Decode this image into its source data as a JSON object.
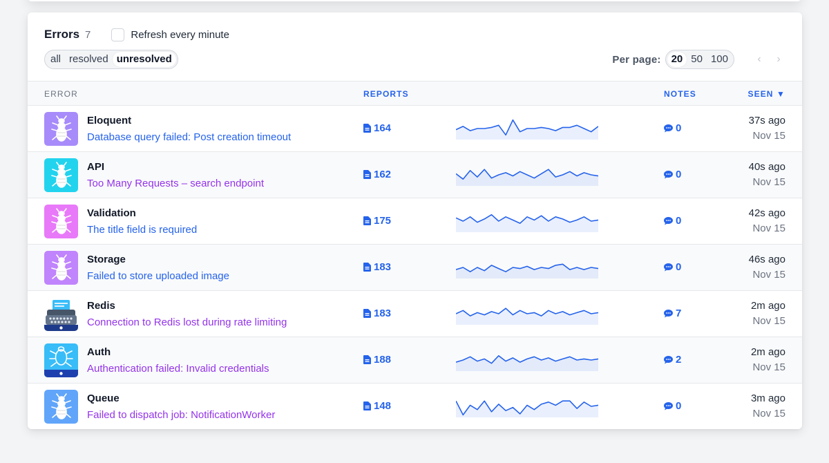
{
  "header": {
    "title": "Errors",
    "count": "7",
    "refresh_label": "Refresh every minute"
  },
  "filters": [
    "all",
    "resolved",
    "unresolved"
  ],
  "filters_active": "unresolved",
  "per_page": {
    "label": "Per page:",
    "options": [
      "20",
      "50",
      "100"
    ],
    "active": "20"
  },
  "columns": {
    "error": "Error",
    "reports": "Reports",
    "notes": "Notes",
    "seen": "Seen ▼"
  },
  "colors": {
    "link_blue": "#2563eb",
    "visited_purple": "#9333ea"
  },
  "rows": [
    {
      "name": "Eloquent",
      "message": "Database query failed: Post creation timeout",
      "message_color": "#2563eb",
      "reports": "164",
      "notes": "0",
      "ago": "37s ago",
      "date": "Nov 15",
      "icon": "bug-icon",
      "icon_bg": "#a78bfa",
      "spark": [
        8,
        11,
        7,
        9,
        9,
        10,
        12,
        3,
        17,
        6,
        9,
        9,
        10,
        9,
        7,
        10,
        10,
        12,
        9,
        6,
        11
      ]
    },
    {
      "name": "API",
      "message": "Too Many Requests – search endpoint",
      "message_color": "#9333ea",
      "reports": "162",
      "notes": "0",
      "ago": "40s ago",
      "date": "Nov 15",
      "icon": "bug-icon",
      "icon_bg": "#22d3ee",
      "spark": [
        10,
        5,
        13,
        7,
        14,
        6,
        9,
        11,
        8,
        12,
        9,
        6,
        10,
        14,
        7,
        9,
        12,
        8,
        11,
        9,
        8
      ]
    },
    {
      "name": "Validation",
      "message": "The title field is required",
      "message_color": "#2563eb",
      "reports": "175",
      "notes": "0",
      "ago": "42s ago",
      "date": "Nov 15",
      "icon": "bug-icon",
      "icon_bg": "#e879f9",
      "spark": [
        12,
        9,
        13,
        8,
        11,
        15,
        9,
        13,
        10,
        7,
        13,
        10,
        14,
        9,
        13,
        11,
        8,
        10,
        13,
        9,
        10
      ]
    },
    {
      "name": "Storage",
      "message": "Failed to store uploaded image",
      "message_color": "#2563eb",
      "reports": "183",
      "notes": "0",
      "ago": "46s ago",
      "date": "Nov 15",
      "icon": "bug-icon",
      "icon_bg": "#c084fc",
      "spark": [
        7,
        9,
        5,
        9,
        6,
        11,
        8,
        5,
        9,
        8,
        10,
        7,
        9,
        8,
        11,
        12,
        7,
        9,
        7,
        9,
        8
      ]
    },
    {
      "name": "Redis",
      "message": "Connection to Redis lost during rate limiting",
      "message_color": "#9333ea",
      "reports": "183",
      "notes": "7",
      "ago": "2m ago",
      "date": "Nov 15",
      "icon": "typewriter-icon",
      "icon_bg": "#ffffff",
      "spark": [
        9,
        12,
        7,
        10,
        8,
        11,
        9,
        14,
        8,
        12,
        9,
        10,
        7,
        12,
        9,
        11,
        8,
        10,
        12,
        9,
        10
      ]
    },
    {
      "name": "Auth",
      "message": "Authentication failed: Invalid credentials",
      "message_color": "#9333ea",
      "reports": "188",
      "notes": "2",
      "ago": "2m ago",
      "date": "Nov 15",
      "icon": "bug-icon",
      "icon_bg": "#38bdf8",
      "spark": [
        7,
        9,
        12,
        8,
        10,
        6,
        13,
        8,
        11,
        7,
        10,
        12,
        9,
        11,
        8,
        10,
        12,
        9,
        10,
        9,
        10
      ]
    },
    {
      "name": "Queue",
      "message": "Failed to dispatch job: NotificationWorker",
      "message_color": "#9333ea",
      "reports": "148",
      "notes": "0",
      "ago": "3m ago",
      "date": "Nov 15",
      "icon": "bug-icon",
      "icon_bg": "#60a5fa",
      "spark": [
        14,
        1,
        10,
        6,
        14,
        4,
        11,
        5,
        8,
        2,
        10,
        6,
        11,
        13,
        10,
        14,
        14,
        7,
        13,
        9,
        10
      ]
    }
  ]
}
